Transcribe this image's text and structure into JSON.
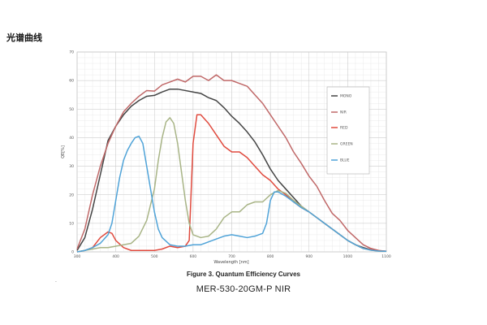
{
  "page_heading": "光谱曲线",
  "caption": "Figure 3. Quantum Efficiency Curves",
  "model": "MER-530-20GM-P NIR",
  "mark": "·",
  "chart_data": {
    "type": "line",
    "xlabel": "Wavelength [nm]",
    "ylabel": "QE[%]",
    "xlim": [
      300,
      1100
    ],
    "ylim": [
      0,
      70
    ],
    "x_ticks": [
      "300",
      "400",
      "500",
      "600",
      "700",
      "800",
      "900",
      "1000",
      "1100"
    ],
    "y_ticks": [
      "0",
      "10",
      "20",
      "30",
      "40",
      "50",
      "60",
      "70"
    ],
    "grid": true,
    "legend_position": "right",
    "series": [
      {
        "name": "MONO",
        "color": "#444444",
        "x": [
          300,
          320,
          340,
          360,
          380,
          400,
          420,
          440,
          460,
          480,
          500,
          520,
          540,
          560,
          580,
          600,
          620,
          640,
          660,
          680,
          700,
          720,
          740,
          760,
          780,
          800,
          820,
          840,
          860,
          880,
          900,
          920,
          940,
          960,
          980,
          1000,
          1020,
          1040,
          1060,
          1080,
          1100
        ],
        "y": [
          0.5,
          5,
          15,
          27,
          39,
          44,
          48,
          51,
          53,
          54.5,
          54.8,
          56,
          57,
          57,
          56.5,
          56,
          55.5,
          54,
          53,
          50.5,
          47.5,
          45,
          42,
          38.5,
          34,
          29,
          25,
          22,
          19,
          16,
          14,
          12,
          10,
          8,
          6,
          4,
          2.5,
          1.5,
          0.8,
          0.4,
          0.2
        ]
      },
      {
        "name": "NIR",
        "color": "#c06868",
        "x": [
          300,
          320,
          340,
          360,
          380,
          400,
          420,
          440,
          460,
          480,
          500,
          520,
          540,
          560,
          580,
          600,
          620,
          640,
          660,
          680,
          700,
          720,
          740,
          760,
          780,
          800,
          820,
          840,
          860,
          880,
          900,
          920,
          940,
          960,
          980,
          1000,
          1020,
          1040,
          1060,
          1080,
          1100
        ],
        "y": [
          1,
          8,
          20,
          30,
          38,
          44,
          49,
          52,
          54.5,
          56.5,
          56.3,
          58.5,
          59.5,
          60.5,
          59.5,
          61.5,
          61.5,
          60,
          62,
          60,
          60,
          59,
          58,
          55,
          52,
          48,
          44,
          40,
          35,
          31,
          26.5,
          23,
          18,
          13.5,
          11,
          7.5,
          5,
          2.5,
          1.2,
          0.5,
          0.2
        ]
      },
      {
        "name": "RED",
        "color": "#e04a3e",
        "x": [
          300,
          320,
          340,
          360,
          380,
          390,
          400,
          420,
          440,
          460,
          480,
          500,
          520,
          540,
          560,
          580,
          590,
          600,
          610,
          620,
          640,
          660,
          680,
          700,
          720,
          740,
          760,
          780,
          800,
          820,
          840,
          860,
          880,
          900,
          920,
          940,
          960,
          980,
          1000,
          1020,
          1040,
          1060,
          1080,
          1100
        ],
        "y": [
          0,
          0.5,
          1.5,
          5,
          7,
          6.5,
          4,
          1.5,
          0.5,
          0.5,
          0.5,
          0.5,
          1,
          2,
          1.5,
          2,
          4,
          38,
          48,
          48,
          45,
          41,
          37,
          35,
          35,
          33,
          30,
          27,
          25,
          22,
          20,
          17.5,
          15.5,
          14,
          12,
          10,
          8,
          6,
          4,
          2.5,
          1.2,
          0.8,
          0.4,
          0.2
        ]
      },
      {
        "name": "GREEN",
        "color": "#a8b486",
        "x": [
          300,
          320,
          340,
          360,
          380,
          400,
          420,
          440,
          460,
          480,
          500,
          510,
          520,
          530,
          540,
          550,
          560,
          570,
          580,
          590,
          600,
          620,
          640,
          660,
          680,
          700,
          720,
          740,
          760,
          780,
          800,
          820,
          840,
          860,
          880,
          900,
          920,
          940,
          960,
          980,
          1000,
          1020,
          1040,
          1060,
          1080,
          1100
        ],
        "y": [
          0,
          0.5,
          1,
          1.5,
          1.5,
          2,
          2.5,
          3,
          5.5,
          11,
          22,
          32,
          40,
          45.5,
          47,
          45,
          38,
          28,
          18,
          10,
          6,
          5,
          5.5,
          8,
          12,
          14,
          14,
          16.5,
          17.5,
          17.5,
          20,
          21.5,
          20.5,
          18,
          16,
          14,
          12,
          10,
          8,
          6,
          4,
          2.5,
          1.2,
          0.6,
          0.3,
          0.2
        ]
      },
      {
        "name": "BLUE",
        "color": "#4fa3d8",
        "x": [
          300,
          320,
          340,
          360,
          380,
          390,
          400,
          410,
          420,
          430,
          440,
          450,
          460,
          470,
          480,
          490,
          500,
          510,
          520,
          540,
          560,
          580,
          600,
          620,
          640,
          660,
          680,
          700,
          720,
          740,
          760,
          780,
          790,
          800,
          810,
          820,
          840,
          860,
          880,
          900,
          920,
          940,
          960,
          980,
          1000,
          1020,
          1040,
          1060,
          1080,
          1100
        ],
        "y": [
          0,
          0.5,
          1.5,
          3,
          6,
          10,
          18,
          26,
          32,
          35.5,
          38,
          40,
          40.5,
          38,
          30,
          22,
          14,
          8,
          5,
          2.5,
          2,
          2,
          2.5,
          2.5,
          3.5,
          4.5,
          5.5,
          6,
          5.5,
          5,
          5.5,
          6.5,
          10,
          18,
          21,
          21,
          19.5,
          17.5,
          15.5,
          14,
          12,
          10,
          8,
          6,
          4,
          2.5,
          1.2,
          0.6,
          0.3,
          0.2
        ]
      }
    ]
  }
}
